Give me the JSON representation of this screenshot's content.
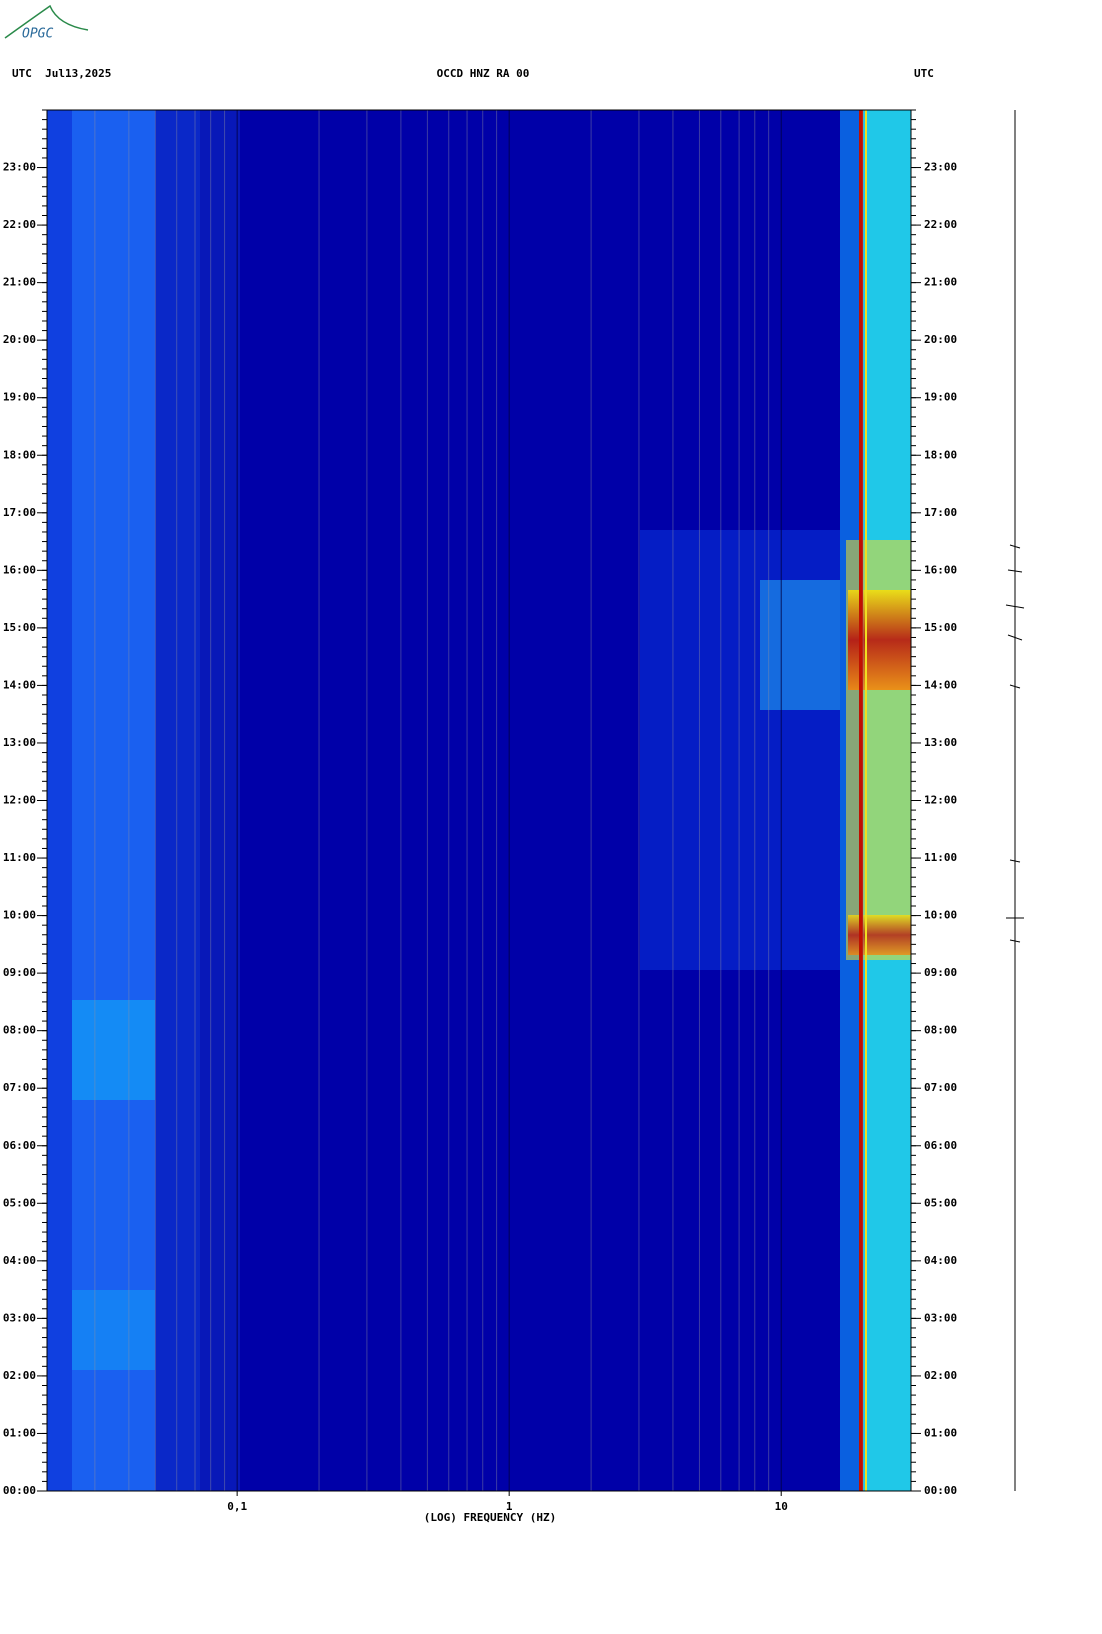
{
  "logo": "OPGC",
  "chart_data": {
    "type": "spectrogram",
    "header_left": "UTC  Jul13,2025",
    "title": "OCCD HNZ RA 00",
    "header_right": "UTC",
    "xlabel": "(LOG) FREQUENCY (HZ)",
    "xscale": "log",
    "xlim": [
      0.02,
      30
    ],
    "xticks": [
      {
        "value": 0.1,
        "label": "0,1"
      },
      1,
      10
    ],
    "ylim": [
      0,
      24
    ],
    "yticks": [
      {
        "value": 0,
        "label": "00:00"
      },
      {
        "value": 1,
        "label": "01:00"
      },
      {
        "value": 2,
        "label": "02:00"
      },
      {
        "value": 3,
        "label": "03:00"
      },
      {
        "value": 4,
        "label": "04:00"
      },
      {
        "value": 5,
        "label": "05:00"
      },
      {
        "value": 6,
        "label": "06:00"
      },
      {
        "value": 7,
        "label": "07:00"
      },
      {
        "value": 8,
        "label": "08:00"
      },
      {
        "value": 9,
        "label": "09:00"
      },
      {
        "value": 10,
        "label": "10:00"
      },
      {
        "value": 11,
        "label": "11:00"
      },
      {
        "value": 12,
        "label": "12:00"
      },
      {
        "value": 13,
        "label": "13:00"
      },
      {
        "value": 14,
        "label": "14:00"
      },
      {
        "value": 15,
        "label": "15:00"
      },
      {
        "value": 16,
        "label": "16:00"
      },
      {
        "value": 17,
        "label": "17:00"
      },
      {
        "value": 18,
        "label": "18:00"
      },
      {
        "value": 19,
        "label": "19:00"
      },
      {
        "value": 20,
        "label": "20:00"
      },
      {
        "value": 21,
        "label": "21:00"
      },
      {
        "value": 22,
        "label": "22:00"
      },
      {
        "value": 23,
        "label": "23:00"
      }
    ],
    "grid": true
  }
}
